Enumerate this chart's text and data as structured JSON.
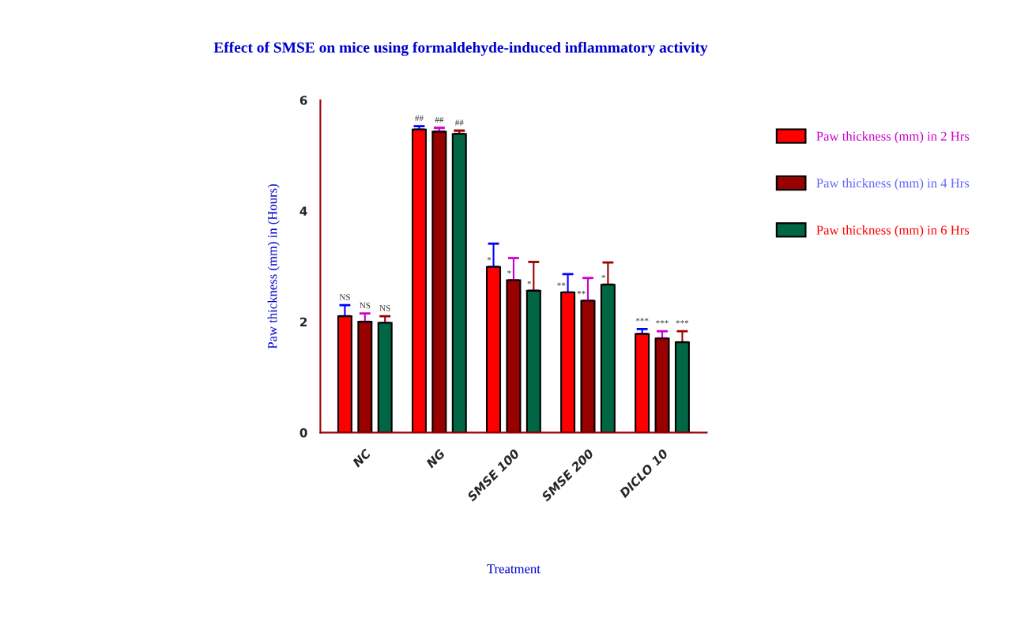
{
  "chart_data": {
    "type": "bar",
    "title": "Effect of SMSE on mice using formaldehyde-induced inflammatory activity",
    "xlabel": "Treatment",
    "ylabel": "Paw thickness (mm) in (Hours)",
    "categories": [
      "NC",
      "NG",
      "SMSE 100",
      "SMSE 200",
      "DICLO 10"
    ],
    "series": [
      {
        "name": "Paw thickness (mm) in 2 Hrs",
        "color": "#ff0000",
        "values": [
          2.1,
          5.47,
          2.99,
          2.53,
          1.78
        ],
        "errors": [
          [
            2.1,
            2.3
          ],
          [
            5.47,
            5.53
          ],
          [
            2.99,
            3.41
          ],
          [
            2.53,
            2.86
          ],
          [
            1.78,
            1.87
          ]
        ],
        "value_labels": [
          "NS",
          "##",
          "*",
          "**",
          "***"
        ]
      },
      {
        "name": "Paw thickness (mm) in 4 Hrs",
        "color": "#990000",
        "values": [
          2.0,
          5.43,
          2.75,
          2.38,
          1.7
        ],
        "errors": [
          [
            2.0,
            2.15
          ],
          [
            5.43,
            5.5
          ],
          [
            2.75,
            3.15
          ],
          [
            2.38,
            2.79
          ],
          [
            1.7,
            1.83
          ]
        ],
        "value_labels": [
          "NS",
          "##",
          "*",
          "**",
          "***"
        ]
      },
      {
        "name": "Paw thickness (mm) in 6 Hrs",
        "color": "#006644",
        "values": [
          1.98,
          5.39,
          2.56,
          2.67,
          1.63
        ],
        "errors": [
          [
            1.98,
            2.1
          ],
          [
            5.39,
            5.45
          ],
          [
            2.56,
            3.08
          ],
          [
            2.67,
            3.07
          ],
          [
            1.63,
            1.83
          ]
        ],
        "value_labels": [
          "NS",
          "##",
          "*",
          "*",
          "***"
        ]
      }
    ],
    "ylim": [
      0,
      6
    ],
    "yticks": [
      0,
      2,
      4,
      6
    ],
    "grid": false,
    "legend": "right"
  }
}
